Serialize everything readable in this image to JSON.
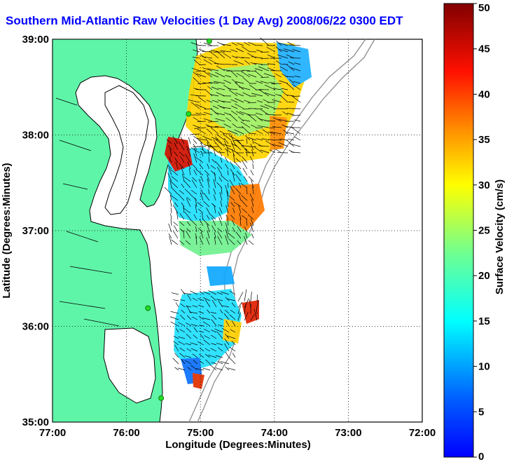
{
  "title": "Southern Mid-Atlantic Raw Velocities (1 Day Avg) 2008/06/22 0300 EDT",
  "colors": {
    "land": "#5ff5a8",
    "water": "#ffffff",
    "coast": "#000000",
    "bathymetry": "#8c8c8c",
    "station": "#22dd22",
    "title": "#0000ff"
  },
  "axes": {
    "xlabel": "Longitude (Degrees:Minutes)",
    "ylabel": "Latitude (Degrees:Minutes)",
    "xticks": [
      "77:00",
      "76:00",
      "75:00",
      "74:00",
      "73:00",
      "72:00"
    ],
    "yticks": [
      "39:00",
      "38:00",
      "37:00",
      "36:00",
      "35:00"
    ],
    "xlim": [
      -77,
      -72
    ],
    "ylim": [
      35,
      39
    ],
    "grid": "dotted"
  },
  "colorbar": {
    "label": "Surface Velocity (cm/s)",
    "ticks": [
      "50",
      "45",
      "40",
      "35",
      "30",
      "25",
      "20",
      "15",
      "10",
      "5",
      "0"
    ],
    "min": 0,
    "max": 50,
    "colormap": "jet"
  },
  "stations": [
    {
      "lon": -74.88,
      "lat": 38.98
    },
    {
      "lon": -75.16,
      "lat": 38.22
    },
    {
      "lon": -75.71,
      "lat": 36.19
    },
    {
      "lon": -75.53,
      "lat": 35.25
    }
  ]
}
